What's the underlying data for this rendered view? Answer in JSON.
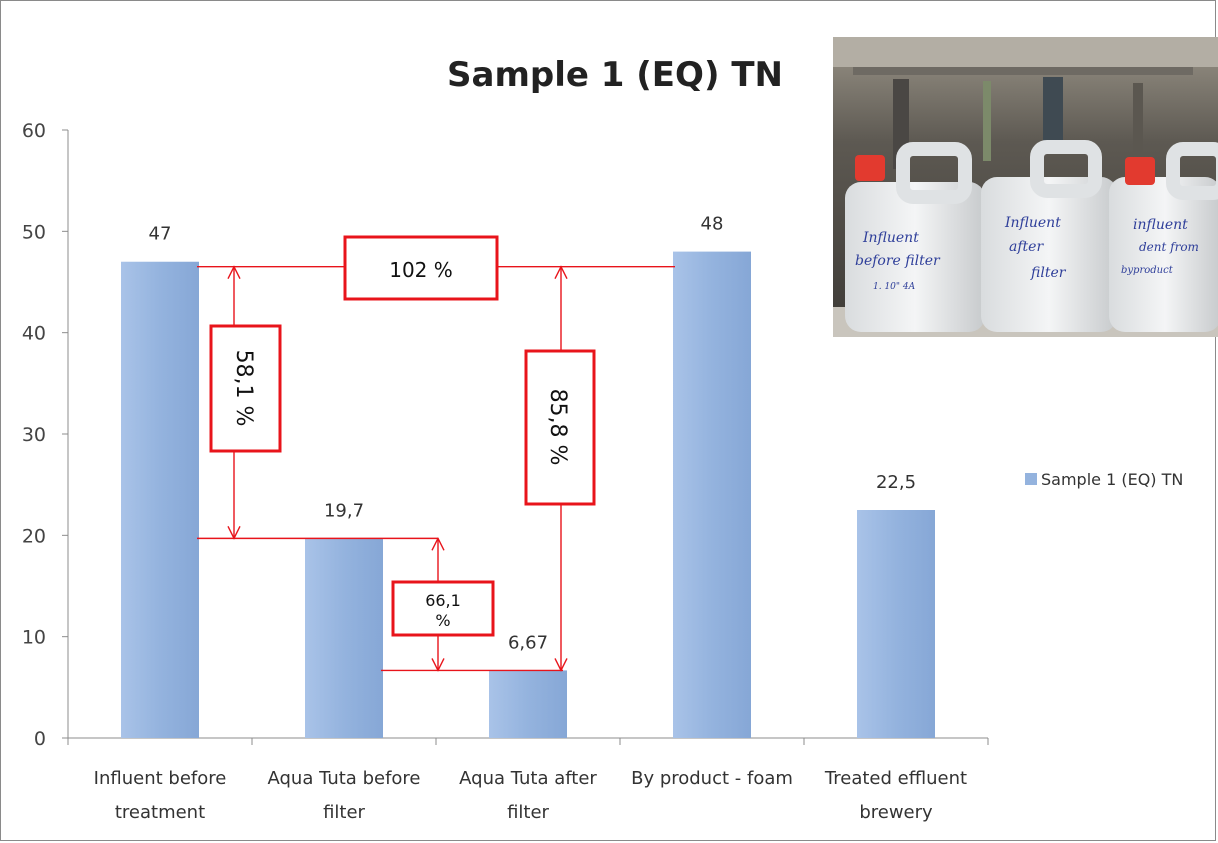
{
  "chart_data": {
    "type": "bar",
    "title": "Sample 1 (EQ) TN",
    "categories": [
      [
        "Influent  before",
        "treatment"
      ],
      [
        "Aqua Tuta before",
        "filter"
      ],
      [
        "Aqua Tuta after",
        "filter"
      ],
      [
        "By product - foam"
      ],
      [
        "Treated effluent",
        "brewery"
      ]
    ],
    "series": [
      {
        "name": "Sample 1 (EQ) TN",
        "values": [
          47,
          19.7,
          6.67,
          48,
          22.5
        ]
      }
    ],
    "data_labels": [
      "47",
      "19,7",
      "6,67",
      "48",
      "22,5"
    ],
    "ylim": [
      0,
      60
    ],
    "yticks": [
      0,
      10,
      20,
      30,
      40,
      50,
      60
    ],
    "grid": false,
    "legend_position": "right",
    "bar_color": "#94b3de",
    "annotation_color": "#e8141b",
    "annotations": [
      {
        "text": "102 %",
        "from_category": 0,
        "to_category": 3
      },
      {
        "text": "58,1 %",
        "from_category": 0,
        "to_category": 1,
        "rotated": true
      },
      {
        "text": "85,8 %",
        "from_category": 2,
        "to_category": 3,
        "rotated": true
      },
      {
        "text": "66,1 %",
        "lines": [
          "66,1",
          "%"
        ],
        "from_category": 1,
        "to_category": 2
      }
    ]
  },
  "photo": {
    "jug_labels": [
      [
        "Influent",
        "before filter",
        "1. 10\" 4A"
      ],
      [
        "Influent",
        "after",
        "filter"
      ],
      [
        "influent",
        "dent from",
        "byproduct"
      ]
    ]
  }
}
